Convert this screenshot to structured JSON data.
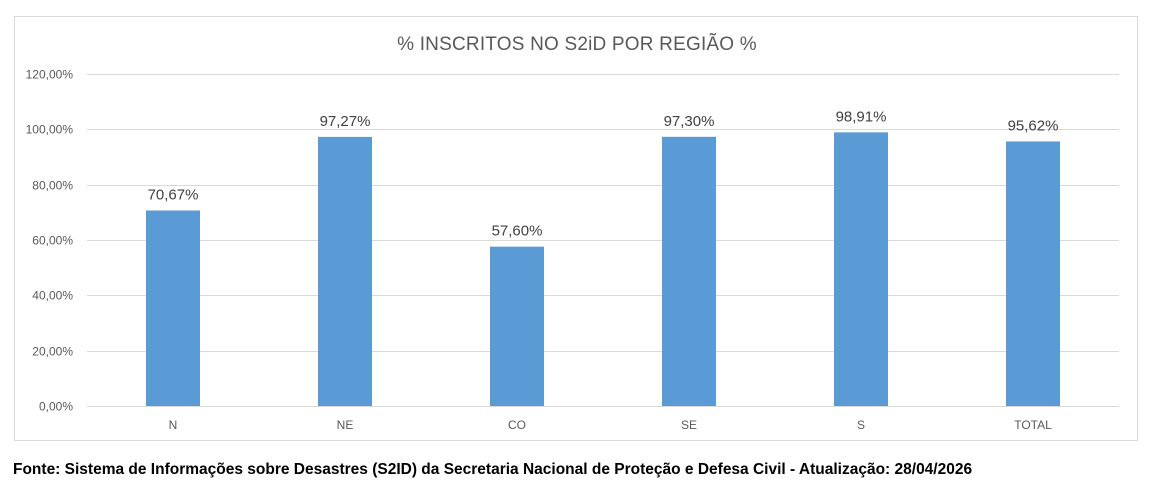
{
  "chart_data": {
    "type": "bar",
    "title": "% INSCRITOS NO S2iD POR REGIÃO %",
    "categories": [
      "N",
      "NE",
      "CO",
      "SE",
      "S",
      "TOTAL"
    ],
    "values": [
      70.67,
      97.27,
      57.6,
      97.3,
      98.91,
      95.62
    ],
    "data_labels": [
      "70,67%",
      "97,27%",
      "57,60%",
      "97,30%",
      "98,91%",
      "95,62%"
    ],
    "xlabel": "",
    "ylabel": "",
    "ylim": [
      0,
      120
    ],
    "y_ticks": [
      0,
      20,
      40,
      60,
      80,
      100,
      120
    ],
    "y_tick_labels": [
      "0,00%",
      "20,00%",
      "40,00%",
      "60,00%",
      "80,00%",
      "100,00%",
      "120,00%"
    ],
    "grid": true,
    "legend": "none",
    "bar_color": "#5b9bd5",
    "grid_color": "#d9d9d9"
  },
  "source_note": "Fonte: Sistema de Informações sobre Desastres (S2ID) da Secretaria Nacional de Proteção e Defesa Civil - Atualização: 28/04/2026"
}
